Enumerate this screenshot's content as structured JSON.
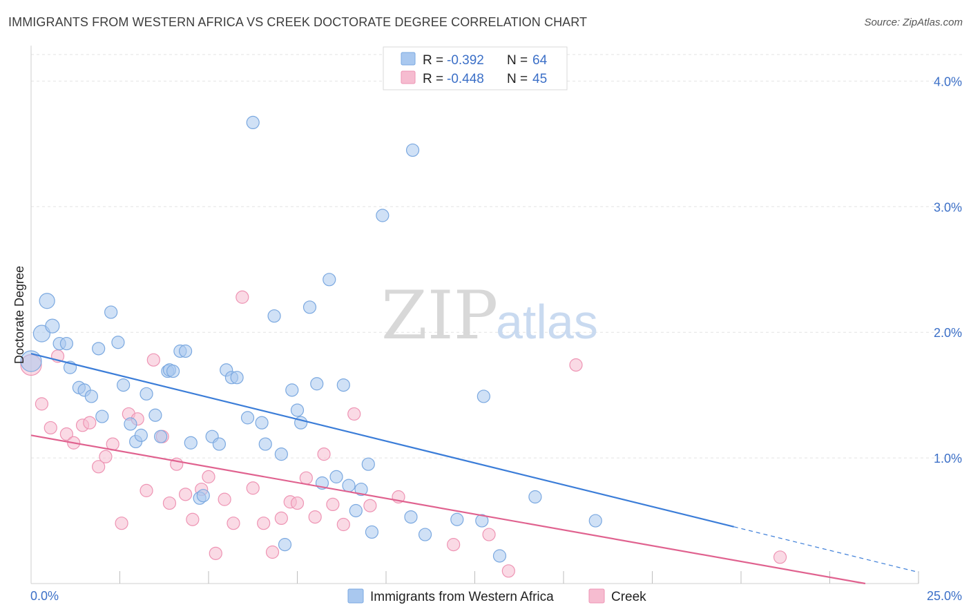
{
  "header": {
    "title": "IMMIGRANTS FROM WESTERN AFRICA VS CREEK DOCTORATE DEGREE CORRELATION CHART",
    "source": "Source: ZipAtlas.com"
  },
  "watermark": {
    "zip": "ZIP",
    "atlas": "atlas"
  },
  "colors": {
    "blue_fill": "#a9c8ef",
    "blue_stroke": "#7aa8e0",
    "blue_line": "#3b7dd8",
    "pink_fill": "#f6bcd0",
    "pink_stroke": "#ee93b3",
    "pink_line": "#e0628f",
    "grid": "#e3e3e3",
    "axis_text": "#3b6fc7"
  },
  "legend": {
    "rows": [
      {
        "r_label": "R = ",
        "r_value": "-0.392",
        "n_label": "N = ",
        "n_value": "64"
      },
      {
        "r_label": "R = ",
        "r_value": "-0.448",
        "n_label": "N = ",
        "n_value": "45"
      }
    ]
  },
  "chart_data": {
    "type": "scatter",
    "title": "IMMIGRANTS FROM WESTERN AFRICA VS CREEK DOCTORATE DEGREE CORRELATION CHART",
    "xlabel": "",
    "ylabel": "Doctorate Degree",
    "xlim": [
      0,
      25
    ],
    "ylim": [
      0,
      4.2
    ],
    "x_tick_labels": [
      "0.0%",
      "25.0%"
    ],
    "y_ticks": [
      1.0,
      2.0,
      3.0,
      4.0
    ],
    "y_tick_labels": [
      "1.0%",
      "2.0%",
      "3.0%",
      "4.0%"
    ],
    "grid": true,
    "legend_position": "top-center",
    "series": [
      {
        "name": "Immigrants from Western Africa",
        "r": -0.392,
        "n": 64,
        "trend": {
          "x0": 0.0,
          "y0": 1.83,
          "x1": 25.0,
          "y1": 0.09,
          "solid_until_x": 19.8
        },
        "points": [
          [
            0.0,
            1.77,
            30
          ],
          [
            0.3,
            1.99,
            24
          ],
          [
            0.45,
            2.25,
            22
          ],
          [
            0.6,
            2.05,
            20
          ],
          [
            0.8,
            1.91,
            18
          ],
          [
            1.0,
            1.91,
            18
          ],
          [
            1.1,
            1.72,
            18
          ],
          [
            1.35,
            1.56,
            18
          ],
          [
            1.5,
            1.54,
            18
          ],
          [
            1.7,
            1.49,
            18
          ],
          [
            1.9,
            1.87,
            18
          ],
          [
            2.0,
            1.33,
            18
          ],
          [
            2.25,
            2.16,
            18
          ],
          [
            2.45,
            1.92,
            18
          ],
          [
            2.6,
            1.58,
            18
          ],
          [
            2.8,
            1.27,
            18
          ],
          [
            2.95,
            1.13,
            18
          ],
          [
            3.1,
            1.18,
            18
          ],
          [
            3.25,
            1.51,
            18
          ],
          [
            3.5,
            1.34,
            18
          ],
          [
            3.65,
            1.17,
            18
          ],
          [
            3.85,
            1.69,
            18
          ],
          [
            3.9,
            1.7,
            18
          ],
          [
            4.0,
            1.69,
            18
          ],
          [
            4.2,
            1.85,
            18
          ],
          [
            4.35,
            1.85,
            18
          ],
          [
            4.5,
            1.12,
            18
          ],
          [
            4.75,
            0.68,
            18
          ],
          [
            4.85,
            0.7,
            18
          ],
          [
            5.1,
            1.17,
            18
          ],
          [
            5.3,
            1.11,
            18
          ],
          [
            5.5,
            1.7,
            18
          ],
          [
            5.65,
            1.64,
            18
          ],
          [
            5.8,
            1.64,
            18
          ],
          [
            6.1,
            1.32,
            18
          ],
          [
            6.25,
            3.67,
            18
          ],
          [
            6.5,
            1.28,
            18
          ],
          [
            6.6,
            1.11,
            18
          ],
          [
            6.85,
            2.13,
            18
          ],
          [
            7.05,
            1.03,
            18
          ],
          [
            7.15,
            0.31,
            18
          ],
          [
            7.35,
            1.54,
            18
          ],
          [
            7.5,
            1.38,
            18
          ],
          [
            7.6,
            1.28,
            18
          ],
          [
            7.85,
            2.2,
            18
          ],
          [
            8.05,
            1.59,
            18
          ],
          [
            8.2,
            0.8,
            18
          ],
          [
            8.4,
            2.42,
            18
          ],
          [
            8.6,
            0.85,
            18
          ],
          [
            8.8,
            1.58,
            18
          ],
          [
            8.95,
            0.78,
            18
          ],
          [
            9.15,
            0.58,
            18
          ],
          [
            9.3,
            0.75,
            18
          ],
          [
            9.5,
            0.95,
            18
          ],
          [
            9.6,
            0.41,
            18
          ],
          [
            9.9,
            2.93,
            18
          ],
          [
            10.7,
            0.53,
            18
          ],
          [
            10.75,
            3.45,
            18
          ],
          [
            11.1,
            0.39,
            18
          ],
          [
            12.0,
            0.51,
            18
          ],
          [
            12.7,
            0.5,
            18
          ],
          [
            12.75,
            1.49,
            18
          ],
          [
            13.2,
            0.22,
            18
          ],
          [
            14.2,
            0.69,
            18
          ],
          [
            15.9,
            0.5,
            18
          ]
        ]
      },
      {
        "name": "Creek",
        "r": -0.448,
        "n": 45,
        "trend": {
          "x0": 0.0,
          "y0": 1.18,
          "x1": 23.5,
          "y1": 0.0,
          "solid_until_x": 23.5
        },
        "points": [
          [
            0.0,
            1.74,
            30
          ],
          [
            0.3,
            1.43,
            18
          ],
          [
            0.55,
            1.24,
            18
          ],
          [
            0.75,
            1.81,
            18
          ],
          [
            1.0,
            1.19,
            18
          ],
          [
            1.2,
            1.12,
            18
          ],
          [
            1.45,
            1.26,
            18
          ],
          [
            1.65,
            1.28,
            18
          ],
          [
            1.9,
            0.93,
            18
          ],
          [
            2.1,
            1.01,
            18
          ],
          [
            2.3,
            1.11,
            18
          ],
          [
            2.55,
            0.48,
            18
          ],
          [
            2.75,
            1.35,
            18
          ],
          [
            3.0,
            1.31,
            18
          ],
          [
            3.25,
            0.74,
            18
          ],
          [
            3.45,
            1.78,
            18
          ],
          [
            3.7,
            1.17,
            18
          ],
          [
            3.9,
            0.64,
            18
          ],
          [
            4.1,
            0.95,
            18
          ],
          [
            4.35,
            0.71,
            18
          ],
          [
            4.55,
            0.51,
            18
          ],
          [
            4.8,
            0.75,
            18
          ],
          [
            5.0,
            0.85,
            18
          ],
          [
            5.2,
            0.24,
            18
          ],
          [
            5.45,
            0.67,
            18
          ],
          [
            5.7,
            0.48,
            18
          ],
          [
            5.95,
            2.28,
            18
          ],
          [
            6.25,
            0.76,
            18
          ],
          [
            6.55,
            0.48,
            18
          ],
          [
            6.8,
            0.25,
            18
          ],
          [
            7.05,
            0.52,
            18
          ],
          [
            7.3,
            0.65,
            18
          ],
          [
            7.5,
            0.64,
            18
          ],
          [
            7.75,
            0.84,
            18
          ],
          [
            8.0,
            0.53,
            18
          ],
          [
            8.25,
            1.03,
            18
          ],
          [
            8.5,
            0.63,
            18
          ],
          [
            8.8,
            0.47,
            18
          ],
          [
            9.1,
            1.35,
            18
          ],
          [
            9.55,
            0.62,
            18
          ],
          [
            10.35,
            0.69,
            18
          ],
          [
            11.9,
            0.31,
            18
          ],
          [
            12.9,
            0.39,
            18
          ],
          [
            13.45,
            0.1,
            18
          ],
          [
            15.35,
            1.74,
            18
          ],
          [
            21.1,
            0.21,
            18
          ]
        ]
      }
    ]
  }
}
